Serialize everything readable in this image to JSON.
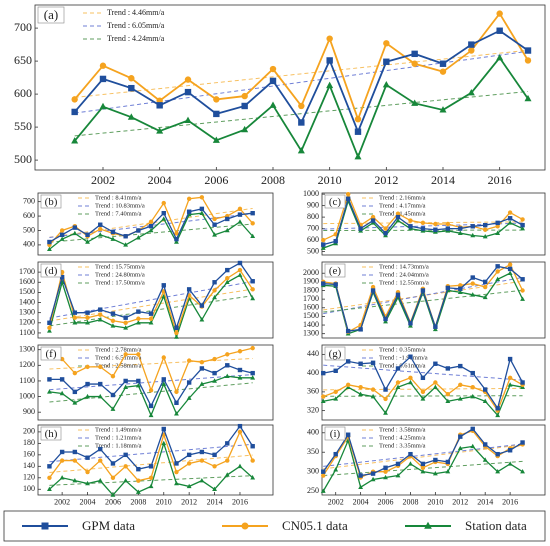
{
  "legend": {
    "items": [
      {
        "name": "GPM data",
        "color": "#1f4e9c",
        "marker": "square",
        "trend_color": "#6f7fd6"
      },
      {
        "name": "CN05.1 data",
        "color": "#f5a31f",
        "marker": "circle",
        "trend_color": "#f7c061"
      },
      {
        "name": "Station data",
        "color": "#17873a",
        "marker": "triangle",
        "trend_color": "#5f9e5f"
      }
    ]
  },
  "chart_data": [
    {
      "type": "line",
      "label": "(a)",
      "x": [
        2001,
        2002,
        2003,
        2004,
        2005,
        2006,
        2007,
        2008,
        2009,
        2010,
        2011,
        2012,
        2013,
        2014,
        2015,
        2016,
        2017
      ],
      "xlim": [
        1999.6,
        2017.6
      ],
      "xticks": [
        2002,
        2004,
        2006,
        2008,
        2010,
        2012,
        2014,
        2016
      ],
      "ylim": [
        485,
        735
      ],
      "yticks": [
        500,
        550,
        600,
        650,
        700
      ],
      "series": [
        {
          "values": [
            573,
            623,
            609,
            583,
            603,
            570,
            582,
            620,
            557,
            651,
            543,
            649,
            661,
            646,
            675,
            696,
            666
          ],
          "trend": "Trend : 6.05mm/a"
        },
        {
          "values": [
            592,
            643,
            624,
            590,
            622,
            592,
            597,
            638,
            582,
            684,
            562,
            677,
            646,
            634,
            666,
            722,
            651
          ],
          "trend": "Trend : 4.46mm/a"
        },
        {
          "values": [
            529,
            581,
            565,
            544,
            560,
            530,
            546,
            583,
            514,
            613,
            505,
            614,
            586,
            576,
            602,
            655,
            593
          ],
          "trend": "Trend : 4.24mm/a"
        }
      ]
    },
    {
      "type": "line",
      "label": "(b)",
      "x": [
        2001,
        2002,
        2003,
        2004,
        2005,
        2006,
        2007,
        2008,
        2009,
        2010,
        2011,
        2012,
        2013,
        2014,
        2015,
        2016,
        2017
      ],
      "xlim": [
        2000.1,
        2018.6
      ],
      "ylim": [
        330,
        760
      ],
      "yticks": [
        400,
        500,
        600,
        700
      ],
      "series": [
        {
          "values": [
            420,
            470,
            520,
            470,
            540,
            490,
            460,
            500,
            530,
            620,
            440,
            630,
            650,
            540,
            580,
            610,
            620
          ],
          "trend": "Trend : 10.83mm/a"
        },
        {
          "values": [
            400,
            500,
            530,
            460,
            510,
            480,
            460,
            500,
            560,
            690,
            480,
            720,
            730,
            580,
            600,
            650,
            550
          ],
          "trend": "Trend : 8.41mm/a"
        },
        {
          "values": [
            370,
            440,
            480,
            420,
            470,
            440,
            400,
            450,
            500,
            580,
            420,
            610,
            620,
            470,
            500,
            560,
            460
          ],
          "trend": "Trend : 7.40mm/a"
        }
      ]
    },
    {
      "type": "line",
      "label": "(c)",
      "x": [
        2001,
        2002,
        2003,
        2004,
        2005,
        2006,
        2007,
        2008,
        2009,
        2010,
        2011,
        2012,
        2013,
        2014,
        2015,
        2016,
        2017
      ],
      "xlim": [
        2000.9,
        2018.8
      ],
      "ylim": [
        470,
        1010
      ],
      "yticks": [
        500,
        600,
        700,
        800,
        900,
        1000
      ],
      "series": [
        {
          "values": [
            560,
            590,
            960,
            700,
            770,
            660,
            800,
            720,
            700,
            690,
            700,
            700,
            720,
            730,
            750,
            790,
            730
          ],
          "trend": "Trend : 4.17mm/a"
        },
        {
          "values": [
            600,
            650,
            1000,
            730,
            800,
            700,
            830,
            770,
            750,
            740,
            740,
            710,
            720,
            690,
            720,
            840,
            780
          ],
          "trend": "Trend : 2.16mm/a"
        },
        {
          "values": [
            530,
            570,
            940,
            680,
            750,
            640,
            770,
            700,
            680,
            670,
            680,
            660,
            640,
            630,
            660,
            750,
            700
          ],
          "trend": "Trend : 1.45mm/a"
        }
      ]
    },
    {
      "type": "line",
      "label": "(d)",
      "x": [
        2001,
        2002,
        2003,
        2004,
        2005,
        2006,
        2007,
        2008,
        2009,
        2010,
        2011,
        2012,
        2013,
        2014,
        2015,
        2016,
        2017
      ],
      "xlim": [
        2000.1,
        2018.6
      ],
      "ylim": [
        1050,
        1800
      ],
      "yticks": [
        1100,
        1200,
        1300,
        1400,
        1500,
        1600,
        1700
      ],
      "series": [
        {
          "values": [
            1200,
            1650,
            1300,
            1300,
            1330,
            1290,
            1250,
            1310,
            1290,
            1570,
            1150,
            1530,
            1370,
            1600,
            1720,
            1790,
            1610
          ],
          "trend": "Trend : 24.80mm/a"
        },
        {
          "values": [
            1150,
            1700,
            1250,
            1250,
            1280,
            1220,
            1200,
            1240,
            1240,
            1510,
            1100,
            1470,
            1360,
            1520,
            1640,
            1720,
            1530
          ],
          "trend": "Trend : 15.75mm/a"
        },
        {
          "values": [
            1120,
            1600,
            1200,
            1200,
            1230,
            1170,
            1150,
            1200,
            1200,
            1460,
            1060,
            1440,
            1230,
            1450,
            1600,
            1670,
            1440
          ],
          "trend": "Trend : 17.50mm/a"
        }
      ]
    },
    {
      "type": "line",
      "label": "(e)",
      "x": [
        2001,
        2002,
        2003,
        2004,
        2005,
        2006,
        2007,
        2008,
        2009,
        2010,
        2011,
        2012,
        2013,
        2014,
        2015,
        2016,
        2017
      ],
      "xlim": [
        2000.9,
        2018.8
      ],
      "ylim": [
        1250,
        2130
      ],
      "yticks": [
        1300,
        1400,
        1500,
        1600,
        1700,
        1800,
        1900,
        2000
      ],
      "series": [
        {
          "values": [
            1880,
            1870,
            1330,
            1350,
            1800,
            1470,
            1750,
            1420,
            1800,
            1380,
            1830,
            1820,
            1950,
            1900,
            2080,
            2050,
            1930
          ],
          "trend": "Trend : 24.04mm/a"
        },
        {
          "values": [
            1900,
            1880,
            1320,
            1400,
            1840,
            1500,
            1780,
            1430,
            1820,
            1380,
            1850,
            1860,
            1880,
            1840,
            2020,
            2100,
            1800
          ],
          "trend": "Trend : 14.73mm/a"
        },
        {
          "values": [
            1860,
            1850,
            1300,
            1350,
            1780,
            1440,
            1720,
            1390,
            1780,
            1350,
            1800,
            1780,
            1750,
            1720,
            1930,
            2000,
            1700
          ],
          "trend": "Trend : 12.55mm/a"
        }
      ]
    },
    {
      "type": "line",
      "label": "(f)",
      "x": [
        2001,
        2002,
        2003,
        2004,
        2005,
        2006,
        2007,
        2008,
        2009,
        2010,
        2011,
        2012,
        2013,
        2014,
        2015,
        2016,
        2017
      ],
      "xlim": [
        2000.1,
        2018.6
      ],
      "ylim": [
        850,
        1330
      ],
      "yticks": [
        900,
        1000,
        1100,
        1200,
        1300
      ],
      "series": [
        {
          "values": [
            1110,
            1110,
            1030,
            1080,
            1080,
            1010,
            1100,
            1100,
            940,
            1110,
            960,
            1090,
            1180,
            1150,
            1200,
            1170,
            1150
          ],
          "trend": "Trend : 6.51mm/a"
        },
        {
          "values": [
            1250,
            1240,
            1150,
            1190,
            1190,
            1130,
            1270,
            1270,
            1040,
            1250,
            1030,
            1230,
            1220,
            1240,
            1270,
            1290,
            1310
          ],
          "trend": "Trend : 2.78mm/a"
        },
        {
          "values": [
            1030,
            1020,
            960,
            1000,
            1000,
            920,
            1060,
            1070,
            880,
            1080,
            890,
            990,
            1080,
            1100,
            1130,
            1120,
            1120
          ],
          "trend": "Trend : 2.58mm/a"
        }
      ]
    },
    {
      "type": "line",
      "label": "(g)",
      "x": [
        2001,
        2002,
        2003,
        2004,
        2005,
        2006,
        2007,
        2008,
        2009,
        2010,
        2011,
        2012,
        2013,
        2014,
        2015,
        2016,
        2017
      ],
      "xlim": [
        2000.9,
        2018.8
      ],
      "ylim": [
        300,
        460
      ],
      "yticks": [
        320,
        360,
        400,
        440
      ],
      "series": [
        {
          "values": [
            400,
            405,
            425,
            420,
            422,
            365,
            410,
            435,
            390,
            420,
            410,
            415,
            400,
            365,
            325,
            430,
            380
          ],
          "trend": "Trend : -1.95mm/a"
        },
        {
          "values": [
            350,
            360,
            375,
            370,
            365,
            345,
            380,
            390,
            360,
            380,
            355,
            375,
            370,
            360,
            320,
            390,
            375
          ],
          "trend": "Trend : 0.35mm/a"
        },
        {
          "values": [
            340,
            345,
            370,
            355,
            350,
            315,
            370,
            380,
            345,
            370,
            340,
            345,
            350,
            340,
            310,
            375,
            370
          ],
          "trend": "Trend : 0.61mm/a"
        }
      ]
    },
    {
      "type": "line",
      "label": "(h)",
      "x": [
        2001,
        2002,
        2003,
        2004,
        2005,
        2006,
        2007,
        2008,
        2009,
        2010,
        2011,
        2012,
        2013,
        2014,
        2015,
        2016,
        2017
      ],
      "xlim": [
        2000.1,
        2018.6
      ],
      "xticks": [
        2002,
        2004,
        2006,
        2008,
        2010,
        2012,
        2014,
        2016
      ],
      "ylim": [
        90,
        212
      ],
      "yticks": [
        100,
        120,
        140,
        160,
        180,
        200
      ],
      "series": [
        {
          "values": [
            140,
            165,
            165,
            155,
            170,
            145,
            160,
            135,
            140,
            205,
            145,
            160,
            165,
            160,
            180,
            210,
            175
          ],
          "trend": "Trend : 1.21mm/a"
        },
        {
          "values": [
            120,
            150,
            150,
            130,
            150,
            120,
            140,
            115,
            120,
            195,
            130,
            145,
            150,
            140,
            150,
            200,
            150
          ],
          "trend": "Trend : 1.49mm/a"
        },
        {
          "values": [
            100,
            120,
            115,
            110,
            115,
            90,
            115,
            95,
            105,
            180,
            110,
            105,
            115,
            100,
            125,
            140,
            120
          ],
          "trend": "Trend : 1.18mm/a"
        }
      ]
    },
    {
      "type": "line",
      "label": "(i)",
      "x": [
        2001,
        2002,
        2003,
        2004,
        2005,
        2006,
        2007,
        2008,
        2009,
        2010,
        2011,
        2012,
        2013,
        2014,
        2015,
        2016,
        2017
      ],
      "xlim": [
        2000.9,
        2018.8
      ],
      "xticks": [
        2002,
        2004,
        2006,
        2008,
        2010,
        2012,
        2014,
        2016
      ],
      "ylim": [
        240,
        420
      ],
      "yticks": [
        250,
        300,
        350,
        400
      ],
      "series": [
        {
          "values": [
            300,
            345,
            395,
            290,
            295,
            310,
            320,
            345,
            320,
            330,
            325,
            390,
            410,
            370,
            345,
            355,
            375
          ],
          "trend": "Trend : 4.25mm/a"
        },
        {
          "values": [
            290,
            340,
            390,
            285,
            300,
            300,
            315,
            340,
            310,
            325,
            320,
            395,
            405,
            365,
            340,
            360,
            370
          ],
          "trend": "Trend : 3.58mm/a"
        },
        {
          "values": [
            250,
            305,
            380,
            260,
            280,
            285,
            290,
            320,
            300,
            295,
            300,
            360,
            365,
            330,
            300,
            320,
            300
          ],
          "trend": "Trend : 3.35mm/a"
        }
      ]
    }
  ]
}
